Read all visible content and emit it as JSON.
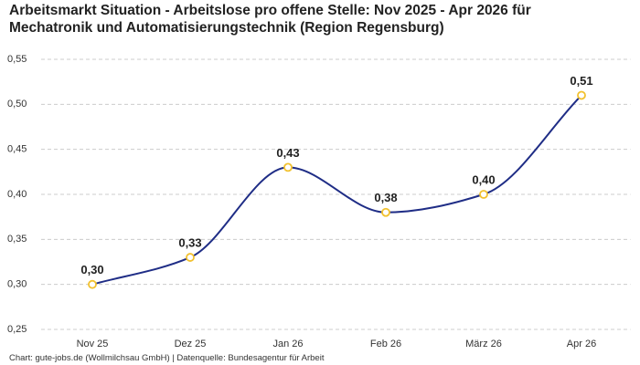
{
  "chart_data": {
    "type": "line",
    "title": "Arbeitsmarkt Situation - Arbeitslose pro offene Stelle: Nov 2025 - Apr 2026 für Mechatronik und Automatisierungstechnik (Region Regensburg)",
    "categories": [
      "Nov 25",
      "Dez 25",
      "Jan 26",
      "Feb 26",
      "März 26",
      "Apr 26"
    ],
    "values": [
      0.3,
      0.33,
      0.43,
      0.38,
      0.4,
      0.51
    ],
    "value_labels": [
      "0,30",
      "0,33",
      "0,43",
      "0,38",
      "0,40",
      "0,51"
    ],
    "color": "#1f2d86",
    "marker_color": "#f2c12e",
    "ylim": [
      0.25,
      0.55
    ],
    "yticks": [
      {
        "value": 0.25,
        "label": "0,25"
      },
      {
        "value": 0.3,
        "label": "0,30"
      },
      {
        "value": 0.35,
        "label": "0,35"
      },
      {
        "value": 0.4,
        "label": "0,40"
      },
      {
        "value": 0.45,
        "label": "0,45"
      },
      {
        "value": 0.5,
        "label": "0,50"
      },
      {
        "value": 0.55,
        "label": "0,55"
      }
    ],
    "grid": true,
    "source": "Chart: gute-jobs.de (Wollmilchsau GmbH) | Datenquelle: Bundesagentur für Arbeit"
  }
}
